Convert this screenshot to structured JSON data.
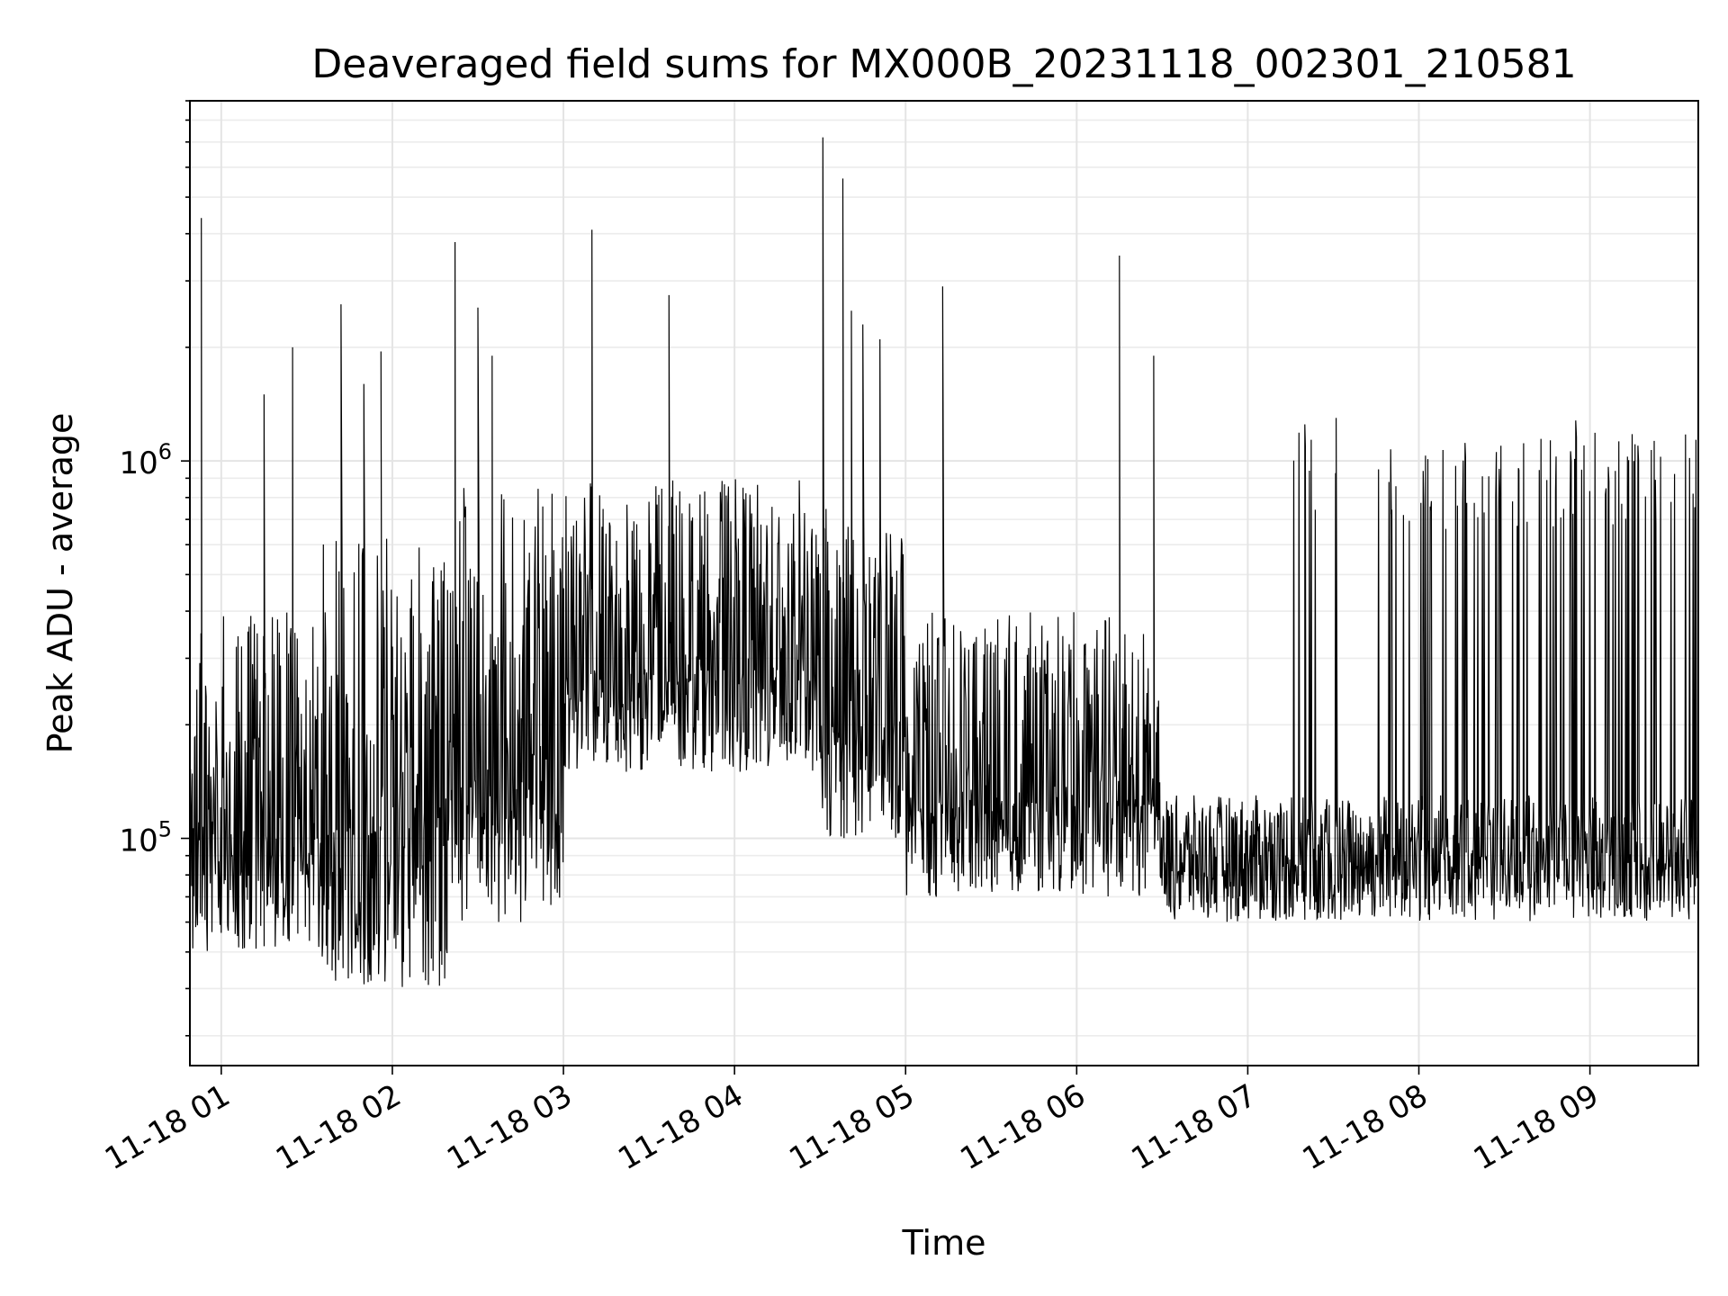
{
  "chart_data": {
    "type": "line",
    "title": "Deaveraged field sums for MX000B_20231118_002301_210581",
    "xlabel": "Time",
    "ylabel": "Peak ADU - average",
    "y_scale": "log",
    "grid": "on (major and minor)",
    "legend": "none",
    "xlim": [
      "2023-11-18 00:49",
      "2023-11-18 09:38"
    ],
    "ylim": [
      25000,
      9000000
    ],
    "x_ticks": [
      {
        "value": "2023-11-18 01:00",
        "label": "11-18 01"
      },
      {
        "value": "2023-11-18 02:00",
        "label": "11-18 02"
      },
      {
        "value": "2023-11-18 03:00",
        "label": "11-18 03"
      },
      {
        "value": "2023-11-18 04:00",
        "label": "11-18 04"
      },
      {
        "value": "2023-11-18 05:00",
        "label": "11-18 05"
      },
      {
        "value": "2023-11-18 06:00",
        "label": "11-18 06"
      },
      {
        "value": "2023-11-18 07:00",
        "label": "11-18 07"
      },
      {
        "value": "2023-11-18 08:00",
        "label": "11-18 08"
      },
      {
        "value": "2023-11-18 09:00",
        "label": "11-18 09"
      }
    ],
    "y_ticks": [
      {
        "value": 100000,
        "base": "10",
        "exp": "5"
      },
      {
        "value": 1000000,
        "base": "10",
        "exp": "6"
      }
    ],
    "series": [
      {
        "color": "#000000",
        "segments": [
          {
            "start": "2023-11-18 00:49",
            "end": "2023-11-18 01:35",
            "low": 50000,
            "high": 400000
          },
          {
            "start": "2023-11-18 01:35",
            "end": "2023-11-18 02:20",
            "low": 40000,
            "high": 650000
          },
          {
            "start": "2023-11-18 02:20",
            "end": "2023-11-18 03:00",
            "low": 60000,
            "high": 850000
          },
          {
            "start": "2023-11-18 03:00",
            "end": "2023-11-18 04:30",
            "low": 150000,
            "high": 900000
          },
          {
            "start": "2023-11-18 04:30",
            "end": "2023-11-18 05:00",
            "low": 100000,
            "high": 750000
          },
          {
            "start": "2023-11-18 05:00",
            "end": "2023-11-18 06:30",
            "low": 70000,
            "high": 400000
          },
          {
            "start": "2023-11-18 06:30",
            "end": "2023-11-18 09:38",
            "low": 60000,
            "high": 130000
          }
        ],
        "spikes": [
          {
            "x": "2023-11-18 00:53",
            "y": 4400000
          },
          {
            "x": "2023-11-18 01:15",
            "y": 1500000
          },
          {
            "x": "2023-11-18 01:25",
            "y": 2000000
          },
          {
            "x": "2023-11-18 01:42",
            "y": 2600000
          },
          {
            "x": "2023-11-18 01:50",
            "y": 1600000
          },
          {
            "x": "2023-11-18 01:56",
            "y": 1950000
          },
          {
            "x": "2023-11-18 02:22",
            "y": 3800000
          },
          {
            "x": "2023-11-18 02:30",
            "y": 2550000
          },
          {
            "x": "2023-11-18 02:35",
            "y": 1900000
          },
          {
            "x": "2023-11-18 03:10",
            "y": 4100000
          },
          {
            "x": "2023-11-18 03:37",
            "y": 2750000
          },
          {
            "x": "2023-11-18 04:31",
            "y": 7200000
          },
          {
            "x": "2023-11-18 04:38",
            "y": 5600000
          },
          {
            "x": "2023-11-18 04:41",
            "y": 2500000
          },
          {
            "x": "2023-11-18 04:45",
            "y": 2300000
          },
          {
            "x": "2023-11-18 04:51",
            "y": 2100000
          },
          {
            "x": "2023-11-18 05:13",
            "y": 2900000
          },
          {
            "x": "2023-11-18 06:15",
            "y": 3500000
          },
          {
            "x": "2023-11-18 06:27",
            "y": 1900000
          },
          {
            "x": "2023-11-18 07:20",
            "y": 1250000
          },
          {
            "x": "2023-11-18 07:31",
            "y": 1300000
          },
          {
            "x": "2023-11-18 08:55",
            "y": 1280000
          }
        ],
        "spike_regions": [
          {
            "start": "2023-11-18 07:15",
            "end": "2023-11-18 07:35",
            "high": 1200000
          },
          {
            "start": "2023-11-18 07:45",
            "end": "2023-11-18 08:50",
            "high": 1150000
          },
          {
            "start": "2023-11-18 08:50",
            "end": "2023-11-18 09:38",
            "high": 1200000
          }
        ]
      }
    ]
  }
}
